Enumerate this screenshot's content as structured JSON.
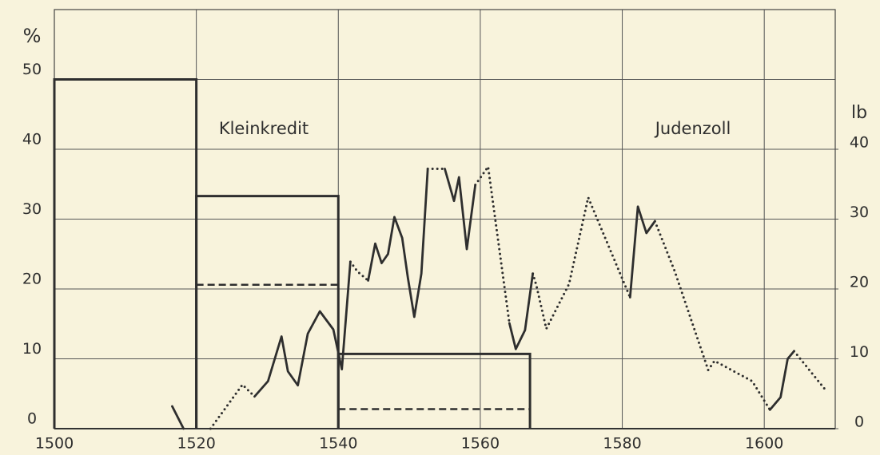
{
  "chart_data": {
    "type": "line",
    "y_label": "%",
    "y2_label": "lb",
    "annotations": [
      "Kleinkredit",
      "Judenzoll"
    ],
    "xlim": [
      1500,
      1610
    ],
    "xticks": [
      1500,
      1520,
      1540,
      1560,
      1580,
      1600
    ],
    "ylim": [
      0,
      60
    ],
    "yticks": [
      0,
      10,
      20,
      30,
      40,
      50
    ],
    "y2lim": [
      0,
      60
    ],
    "y2ticks": [
      0,
      10,
      20,
      30,
      40
    ],
    "grid": true,
    "color": "#2e2e2e",
    "steps": [
      {
        "style": "solid",
        "bins": [
          1500,
          1520,
          1540,
          1567
        ],
        "values": [
          50,
          33.3,
          10.7
        ]
      },
      {
        "style": "dashed",
        "bins": [
          1520,
          1540,
          1567
        ],
        "values": [
          20.6,
          2.8
        ]
      }
    ],
    "series": [
      {
        "style": "solid",
        "axis": "y2",
        "x": [
          1516.6,
          1518.2,
          null,
          1528.2,
          1530.1,
          1532,
          1532.9,
          1534.3,
          1535.7,
          1537.4,
          1539.3,
          1540.5,
          1541.7,
          null,
          1544.2,
          1545.2,
          1546.1,
          1547,
          1547.9,
          1549,
          1549.8,
          1550.7,
          1551.7,
          1552.6,
          null,
          1555,
          1556.3,
          1557,
          1558.1,
          1559.3,
          null,
          1564.1,
          1565,
          1566.3,
          1567.4,
          null,
          1581.1,
          1582.2,
          1583.4,
          1584.6,
          null,
          1600.8,
          1602.3,
          1603.3,
          1604.2
        ],
        "values": [
          3.2,
          0,
          null,
          4.6,
          6.8,
          13.2,
          8.2,
          6.2,
          13.6,
          16.8,
          14.2,
          8.5,
          23.9,
          null,
          21.2,
          26.5,
          23.7,
          25,
          30.3,
          27.3,
          21.6,
          16,
          22.2,
          37.2,
          null,
          37.2,
          32.6,
          36,
          25.7,
          34.9,
          null,
          15.1,
          11.4,
          14.1,
          22.2,
          null,
          18.8,
          31.8,
          28,
          29.7,
          null,
          2.7,
          4.5,
          10,
          11.1
        ]
      },
      {
        "style": "dotted",
        "axis": "y2",
        "x": [
          1522,
          1526.5,
          1528.2,
          null,
          1541.7,
          1542.7,
          1544.2,
          null,
          1552.6,
          1555,
          null,
          1559.3,
          1561.1,
          1564.1,
          null,
          1567.4,
          1567.9,
          1569.3,
          1572.5,
          1575.2,
          1581.1,
          null,
          1584.6,
          1587.4,
          1592.1,
          1593,
          1598.3,
          1600.8,
          null,
          1604.2,
          1608.5
        ],
        "values": [
          0,
          6.3,
          4.6,
          null,
          23.9,
          22.5,
          21.2,
          null,
          37.2,
          37.2,
          null,
          34.9,
          37.5,
          15.1,
          null,
          22.2,
          20.5,
          14.3,
          20.7,
          33.1,
          18.8,
          null,
          29.7,
          22.5,
          8.4,
          9.7,
          6.8,
          2.7,
          null,
          11.1,
          5.7
        ]
      }
    ]
  }
}
